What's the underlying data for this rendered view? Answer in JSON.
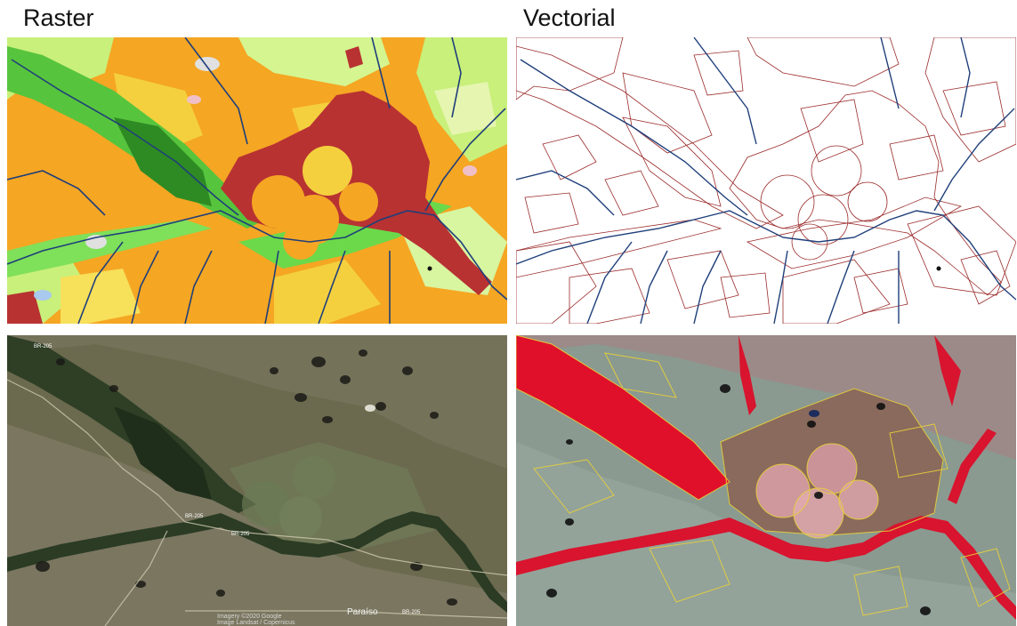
{
  "labels": {
    "raster": "Raster",
    "vector": "Vectorial"
  },
  "satellite": {
    "roads": [
      "BR-205",
      "BR-205",
      "BR-205",
      "BR-205"
    ],
    "town": "Paraíso",
    "attribution": "Imagery ©2020 Google",
    "attribution2": "Image Landsat / Copernicus"
  },
  "colors": {
    "pasture": "#f5a623",
    "agriculture": "#f4d03f",
    "savanna": "#c8f07a",
    "forest": "#3da83a",
    "riparian": "#2e7d32",
    "urban_irrigated": "#b83232",
    "river": "#1f3f7a",
    "vector_line": "#9b2b2b",
    "false_color_veg": "#e0102a"
  }
}
